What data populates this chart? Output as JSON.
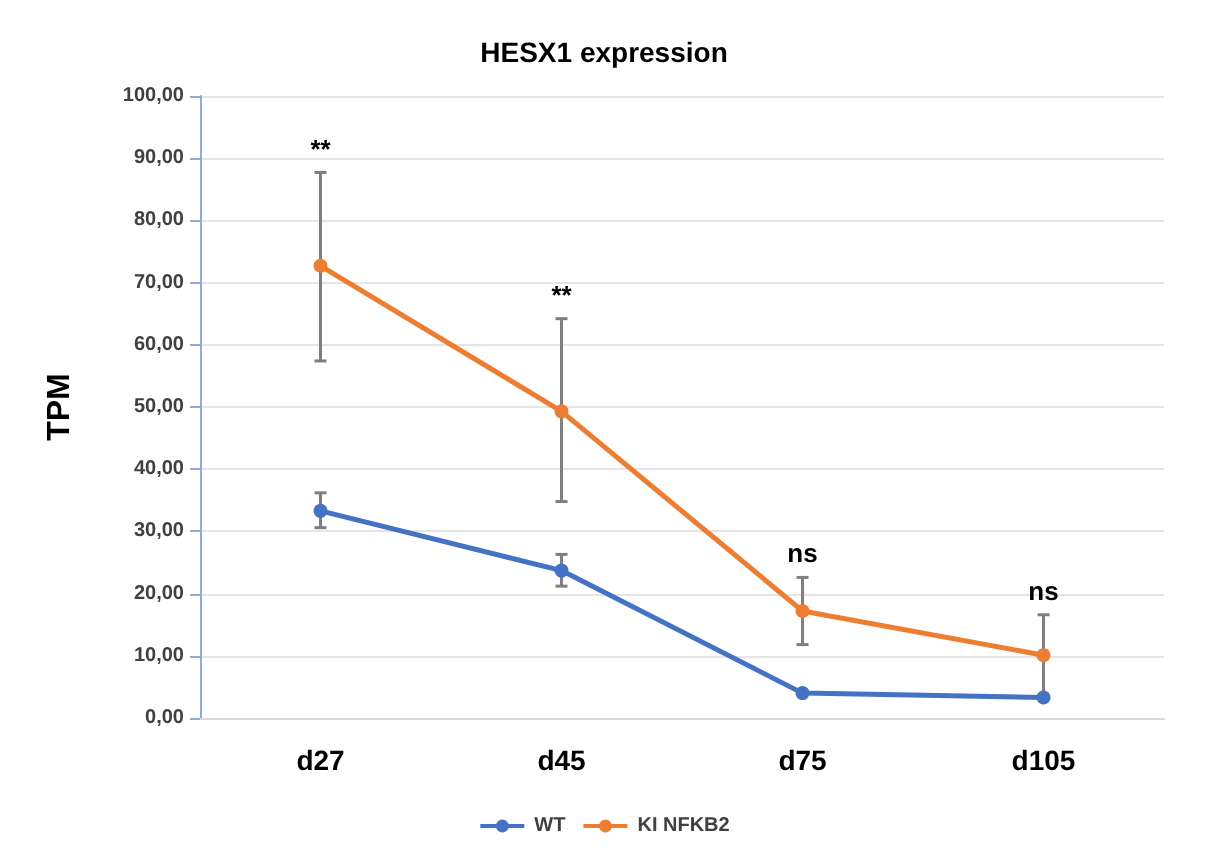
{
  "chart_data": {
    "type": "line",
    "title": "HESX1 expression",
    "ylabel": "TPM",
    "categories": [
      "d27",
      "d45",
      "d75",
      "d105"
    ],
    "series": [
      {
        "name": "WT",
        "color": "#4472c4",
        "values": [
          33.3,
          23.7,
          4.0,
          3.3
        ],
        "errors": [
          [
            30.6,
            36.2
          ],
          [
            21.2,
            26.3
          ],
          null,
          null
        ]
      },
      {
        "name": "KI NFKB2",
        "color": "#ed7d31",
        "values": [
          72.7,
          49.3,
          17.2,
          10.1
        ],
        "errors": [
          [
            57.4,
            87.7
          ],
          [
            34.8,
            64.2
          ],
          [
            11.8,
            22.6
          ],
          [
            3.6,
            16.6
          ]
        ]
      }
    ],
    "ylim": [
      0,
      100
    ],
    "yticks": [
      {
        "value": 0,
        "label": "0,00"
      },
      {
        "value": 10,
        "label": "10,00"
      },
      {
        "value": 20,
        "label": "20,00"
      },
      {
        "value": 30,
        "label": "30,00"
      },
      {
        "value": 40,
        "label": "40,00"
      },
      {
        "value": 50,
        "label": "50,00"
      },
      {
        "value": 60,
        "label": "60,00"
      },
      {
        "value": 70,
        "label": "70,00"
      },
      {
        "value": 80,
        "label": "80,00"
      },
      {
        "value": 90,
        "label": "90,00"
      },
      {
        "value": 100,
        "label": "100,00"
      }
    ],
    "annotations": [
      "**",
      "**",
      "ns",
      "ns"
    ],
    "grid": "y",
    "legend": "bottom",
    "marker": "circle",
    "line_style": "solid"
  }
}
